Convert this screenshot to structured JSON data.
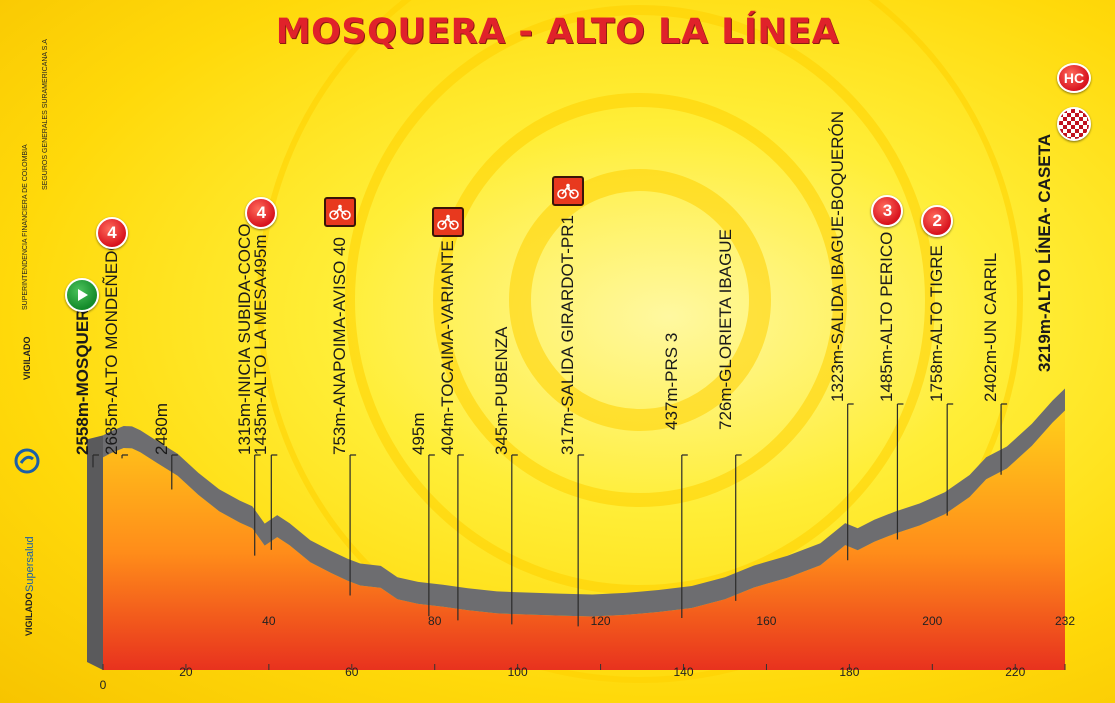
{
  "title": "MOSQUERA - ALTO LA LÍNEA",
  "side_texts": {
    "superintendencia": "SUPERINTENDENCIA FINANCIERA DE COLOMBIA",
    "seguros": "SEGUROS GENERALES SURAMERICANA S.A",
    "vigilado": "VIGILADO",
    "supersalud_vigilado": "VIGILADO",
    "supersalud_name": "Supersalud"
  },
  "colors": {
    "title": "#e0222a",
    "profile_top": "#ffcf1a",
    "profile_bottom": "#e8321e",
    "road_edge": "#6a6a6c",
    "background": "#ffe52a"
  },
  "chart_data": {
    "type": "area",
    "title": "MOSQUERA - ALTO LA LÍNEA",
    "xlabel": "",
    "ylabel": "",
    "xlim": [
      0,
      232
    ],
    "x_ticks": [
      0,
      20,
      40,
      60,
      80,
      100,
      120,
      140,
      160,
      180,
      200,
      220,
      232
    ],
    "ylim": [
      0,
      3400
    ],
    "profile": [
      {
        "km": 0,
        "elev": 2558
      },
      {
        "km": 2,
        "elev": 2620
      },
      {
        "km": 5,
        "elev": 2690
      },
      {
        "km": 7,
        "elev": 2685
      },
      {
        "km": 9,
        "elev": 2630
      },
      {
        "km": 13,
        "elev": 2480
      },
      {
        "km": 18,
        "elev": 2300
      },
      {
        "km": 23,
        "elev": 2030
      },
      {
        "km": 28,
        "elev": 1800
      },
      {
        "km": 33,
        "elev": 1640
      },
      {
        "km": 36,
        "elev": 1560
      },
      {
        "km": 39,
        "elev": 1315
      },
      {
        "km": 42,
        "elev": 1435
      },
      {
        "km": 45,
        "elev": 1320
      },
      {
        "km": 50,
        "elev": 1080
      },
      {
        "km": 55,
        "elev": 930
      },
      {
        "km": 59,
        "elev": 820
      },
      {
        "km": 62,
        "elev": 753
      },
      {
        "km": 67,
        "elev": 720
      },
      {
        "km": 71,
        "elev": 560
      },
      {
        "km": 76,
        "elev": 495
      },
      {
        "km": 82,
        "elev": 455
      },
      {
        "km": 88,
        "elev": 404
      },
      {
        "km": 95,
        "elev": 360
      },
      {
        "km": 102,
        "elev": 345
      },
      {
        "km": 110,
        "elev": 330
      },
      {
        "km": 118,
        "elev": 317
      },
      {
        "km": 126,
        "elev": 340
      },
      {
        "km": 134,
        "elev": 380
      },
      {
        "km": 142,
        "elev": 437
      },
      {
        "km": 150,
        "elev": 560
      },
      {
        "km": 157,
        "elev": 726
      },
      {
        "km": 165,
        "elev": 860
      },
      {
        "km": 173,
        "elev": 1040
      },
      {
        "km": 179,
        "elev": 1323
      },
      {
        "km": 182,
        "elev": 1250
      },
      {
        "km": 186,
        "elev": 1370
      },
      {
        "km": 191,
        "elev": 1485
      },
      {
        "km": 197,
        "elev": 1600
      },
      {
        "km": 203,
        "elev": 1758
      },
      {
        "km": 209,
        "elev": 2000
      },
      {
        "km": 213,
        "elev": 2250
      },
      {
        "km": 218,
        "elev": 2402
      },
      {
        "km": 224,
        "elev": 2720
      },
      {
        "km": 229,
        "elev": 3050
      },
      {
        "km": 232,
        "elev": 3219
      }
    ],
    "waypoints": [
      {
        "km": 0,
        "label_prefix": "2558m-",
        "label_main": "MOSQUERA",
        "marker": "start"
      },
      {
        "km": 7,
        "label": "2685m-ALTO MONDEÑEDO",
        "marker": "4"
      },
      {
        "km": 19,
        "label": "2480m",
        "marker": ""
      },
      {
        "km": 39,
        "label": "1315m-INICIA SUBIDA-COCO",
        "marker": ""
      },
      {
        "km": 43,
        "label": "1435m-ALTO LA MESA495m",
        "marker": "4"
      },
      {
        "km": 62,
        "label": "753m-ANAPOIMA-AVISO 40",
        "marker": "sprint"
      },
      {
        "km": 81,
        "label": "495m",
        "marker": ""
      },
      {
        "km": 88,
        "label": "404m-TOCAIMA-VARIANTE",
        "marker": "sprint"
      },
      {
        "km": 101,
        "label": "345m-PUBENZA",
        "marker": ""
      },
      {
        "km": 117,
        "label": "317m-SALIDA GIRARDOT-PR1",
        "marker": "sprint"
      },
      {
        "km": 142,
        "label": "437m-PRS 3",
        "marker": ""
      },
      {
        "km": 155,
        "label": "726m-GLORIETA IBAGUE",
        "marker": ""
      },
      {
        "km": 182,
        "label": "1323m-SALIDA IBAGUE-BOQUERÓN",
        "marker": ""
      },
      {
        "km": 194,
        "label": "1485m-ALTO PERICO",
        "marker": "3"
      },
      {
        "km": 206,
        "label": "1758m-ALTO TIGRE",
        "marker": "2"
      },
      {
        "km": 219,
        "label": "2402m-UN CARRIL",
        "marker": ""
      },
      {
        "km": 232,
        "label": "3219m-ALTO LÍNEA- CASETA",
        "marker": "finish"
      }
    ],
    "finish_markers": [
      "HC",
      "finish"
    ]
  }
}
